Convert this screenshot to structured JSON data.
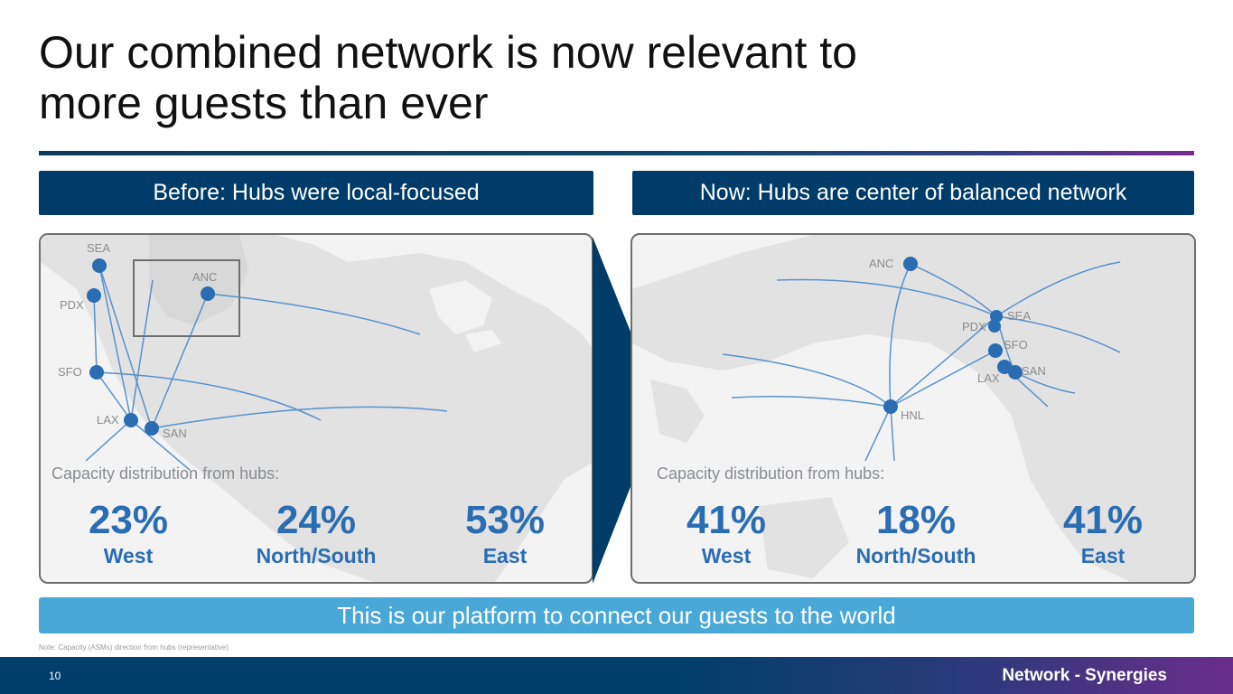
{
  "title": "Our combined network is now relevant to more guests than ever",
  "left": {
    "banner": "Before: Hubs were local-focused",
    "capacity_label": "Capacity distribution from hubs:",
    "airports": {
      "sea": "SEA",
      "anc": "ANC",
      "pdx": "PDX",
      "sfo": "SFO",
      "lax": "LAX",
      "san": "SAN"
    },
    "stats": [
      {
        "pct": "23%",
        "region": "West"
      },
      {
        "pct": "24%",
        "region": "North/South"
      },
      {
        "pct": "53%",
        "region": "East"
      }
    ]
  },
  "right": {
    "banner": "Now: Hubs are center of balanced network",
    "capacity_label": "Capacity distribution from hubs:",
    "airports": {
      "anc": "ANC",
      "sea": "SEA",
      "pdx": "PDX",
      "sfo": "SFO",
      "lax": "LAX",
      "san": "SAN",
      "hnl": "HNL"
    },
    "stats": [
      {
        "pct": "41%",
        "region": "West"
      },
      {
        "pct": "18%",
        "region": "North/South"
      },
      {
        "pct": "41%",
        "region": "East"
      }
    ]
  },
  "bottom_banner": "This is our platform to connect our guests to the world",
  "note": "Note: Capacity (ASMs) direction from hubs (representative)",
  "footer": {
    "page_number": "10",
    "section": "Network - Synergies"
  },
  "colors": {
    "navy": "#003c6a",
    "accent_blue": "#2a6db3",
    "light_blue": "#4aa8d8",
    "route": "#4a88c8"
  }
}
